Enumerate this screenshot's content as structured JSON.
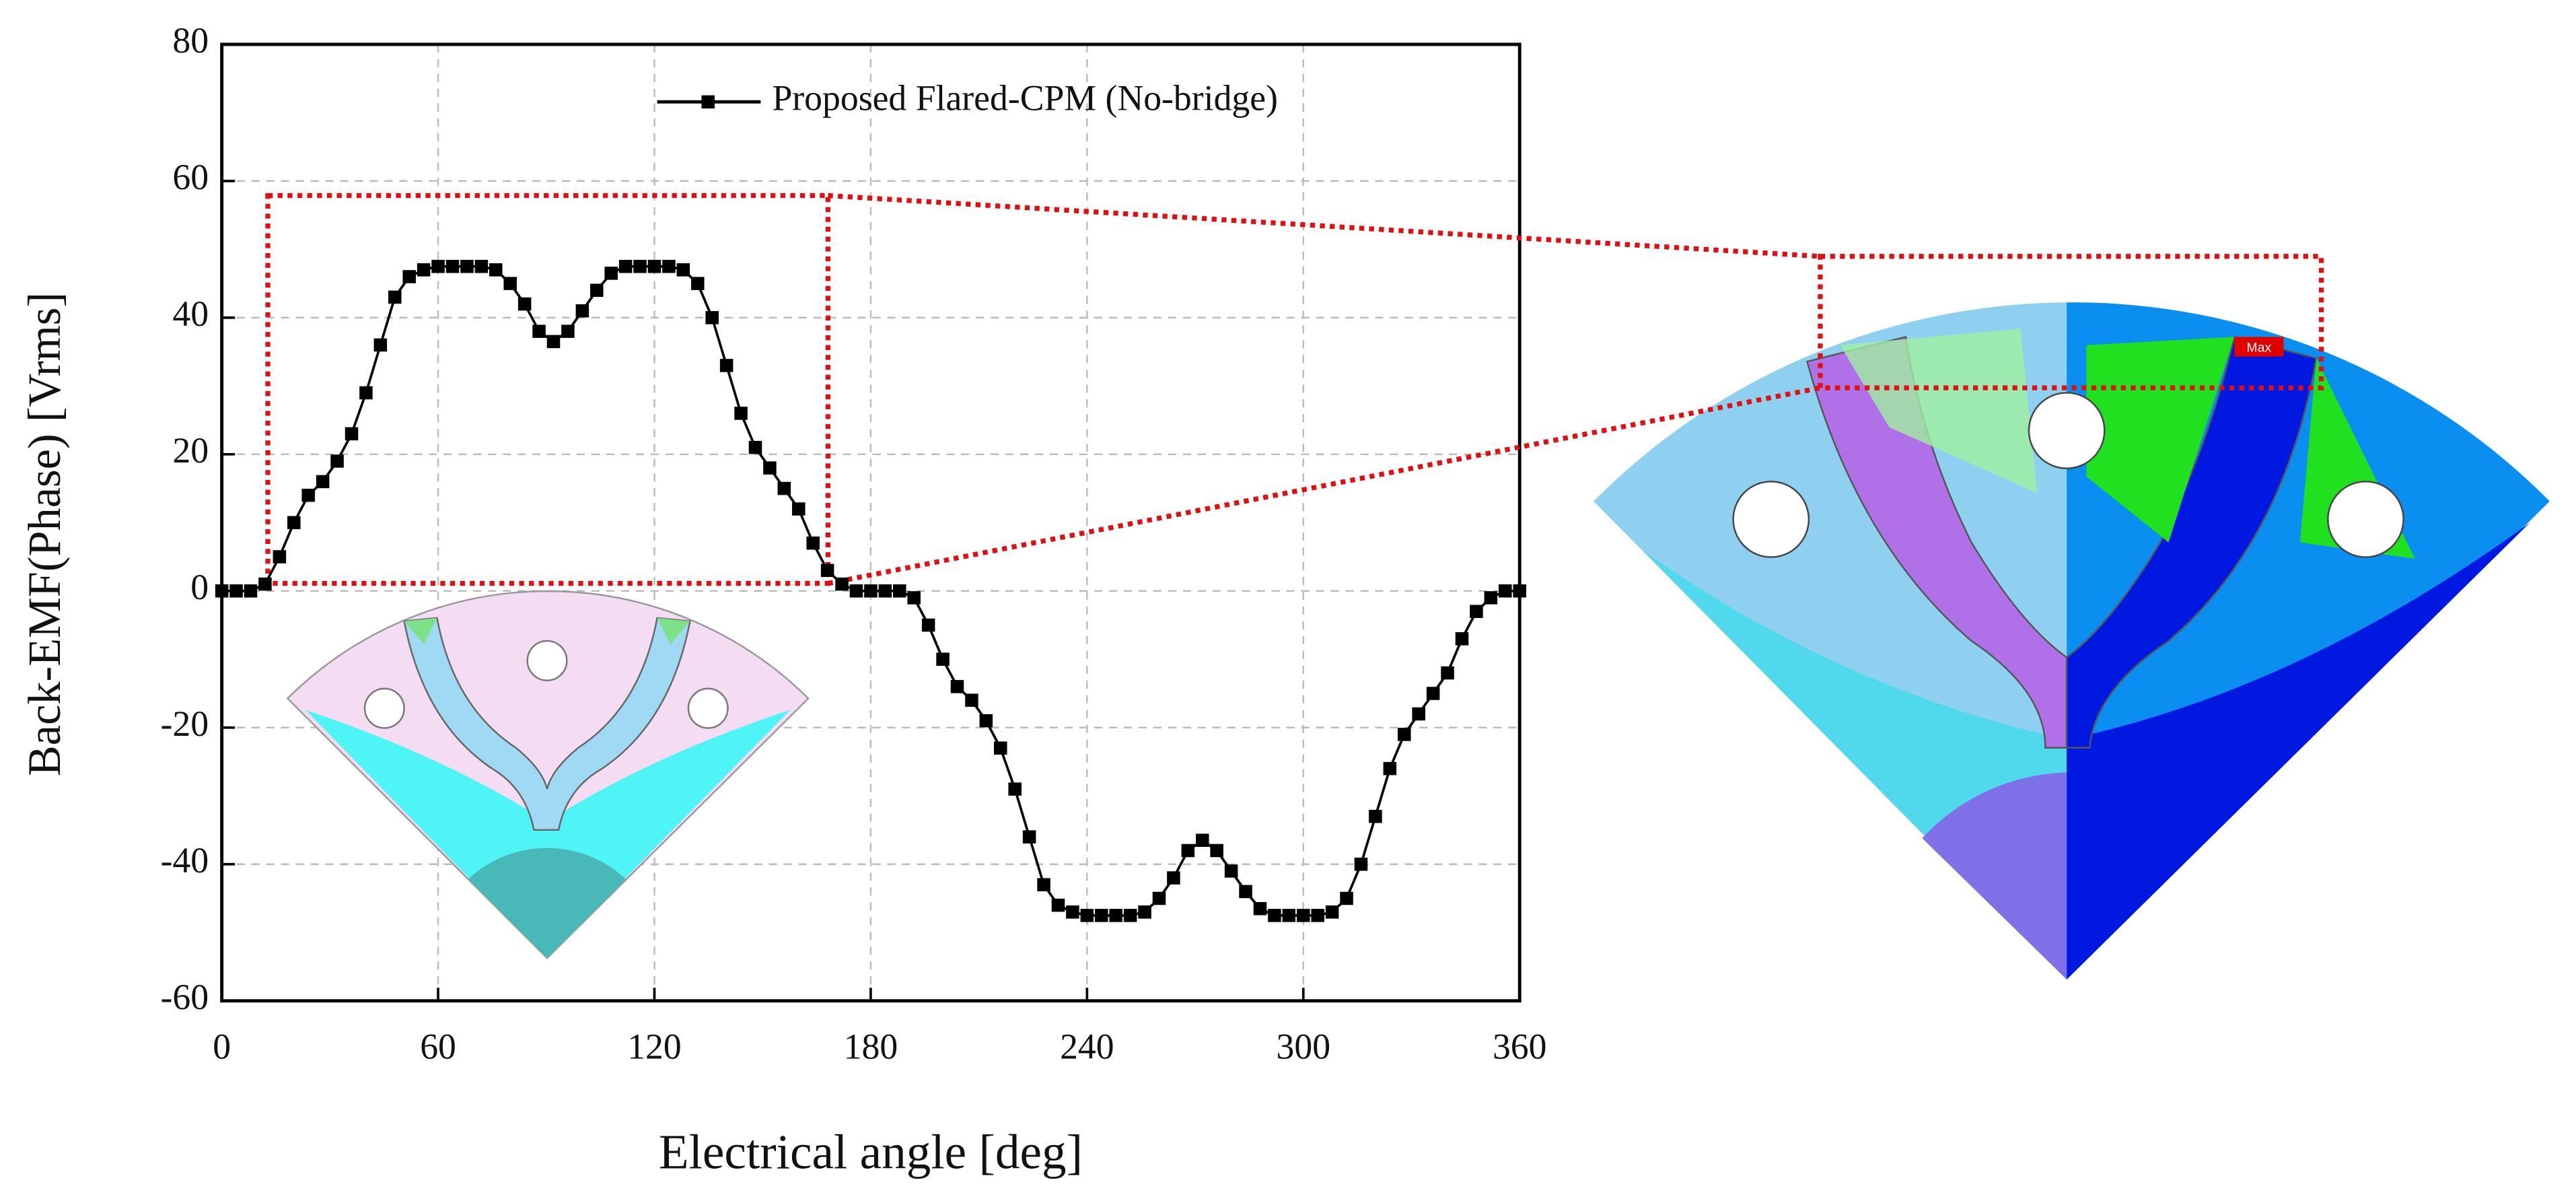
{
  "chart_data": {
    "type": "line",
    "x_label": "Electrical angle [deg]",
    "y_label": "Back-EMF(Phase) [Vrms]",
    "xlim": [
      0,
      360
    ],
    "ylim": [
      -60,
      80
    ],
    "xticks": [
      0,
      60,
      120,
      180,
      240,
      300,
      360
    ],
    "yticks": [
      -60,
      -40,
      -20,
      0,
      20,
      40,
      60,
      80
    ],
    "grid": true,
    "legend": "top-right",
    "annotations": [
      "Max"
    ],
    "x": [
      0,
      4,
      8,
      12,
      16,
      20,
      24,
      28,
      32,
      36,
      40,
      44,
      48,
      52,
      56,
      60,
      64,
      68,
      72,
      76,
      80,
      84,
      88,
      92,
      96,
      100,
      104,
      108,
      112,
      116,
      120,
      124,
      128,
      132,
      136,
      140,
      144,
      148,
      152,
      156,
      160,
      164,
      168,
      172,
      176,
      180,
      184,
      188,
      192,
      196,
      200,
      204,
      208,
      212,
      216,
      220,
      224,
      228,
      232,
      236,
      240,
      244,
      248,
      252,
      256,
      260,
      264,
      268,
      272,
      276,
      280,
      284,
      288,
      292,
      296,
      300,
      304,
      308,
      312,
      316,
      320,
      324,
      328,
      332,
      336,
      340,
      344,
      348,
      352,
      356,
      360
    ],
    "series": [
      {
        "name": "Proposed Flared-CPM (No-bridge)",
        "color": "#000000",
        "values": [
          0,
          0,
          0,
          1,
          5,
          10,
          14,
          16,
          19,
          23,
          29,
          36,
          43,
          46,
          47,
          47.5,
          47.5,
          47.5,
          47.5,
          47,
          45,
          42,
          38,
          36.5,
          38,
          41,
          44,
          46.5,
          47.5,
          47.5,
          47.5,
          47.5,
          47,
          45,
          40,
          33,
          26,
          21,
          18,
          15,
          12,
          7,
          3,
          1,
          0,
          0,
          0,
          0,
          -1,
          -5,
          -10,
          -14,
          -16,
          -19,
          -23,
          -29,
          -36,
          -43,
          -46,
          -47,
          -47.5,
          -47.5,
          -47.5,
          -47.5,
          -47,
          -45,
          -42,
          -38,
          -36.5,
          -38,
          -41,
          -44,
          -46.5,
          -47.5,
          -47.5,
          -47.5,
          -47.5,
          -47,
          -45,
          -40,
          -33,
          -26,
          -21,
          -18,
          -15,
          -12,
          -7,
          -3,
          -1,
          0,
          0
        ]
      }
    ]
  }
}
